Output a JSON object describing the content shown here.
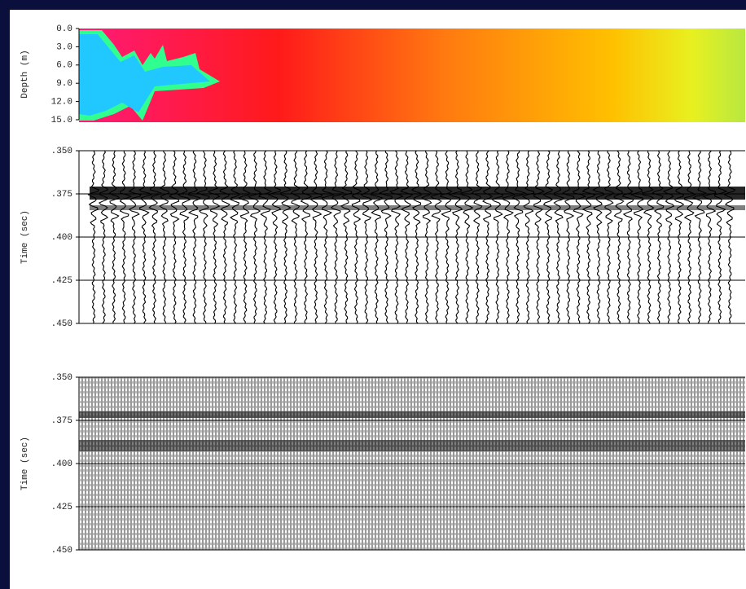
{
  "panels": [
    {
      "axis_label": "Depth (m)",
      "ticks": [
        "0.0",
        "3.0",
        "6.0",
        "9.0",
        "12.0",
        "15.0"
      ]
    },
    {
      "axis_label": "Time (sec)",
      "ticks": [
        ".350",
        ".375",
        ".400",
        ".425",
        ".450"
      ]
    },
    {
      "axis_label": "Time (sec)",
      "ticks": [
        ".350",
        ".375",
        ".400",
        ".425",
        ".450"
      ]
    }
  ]
}
